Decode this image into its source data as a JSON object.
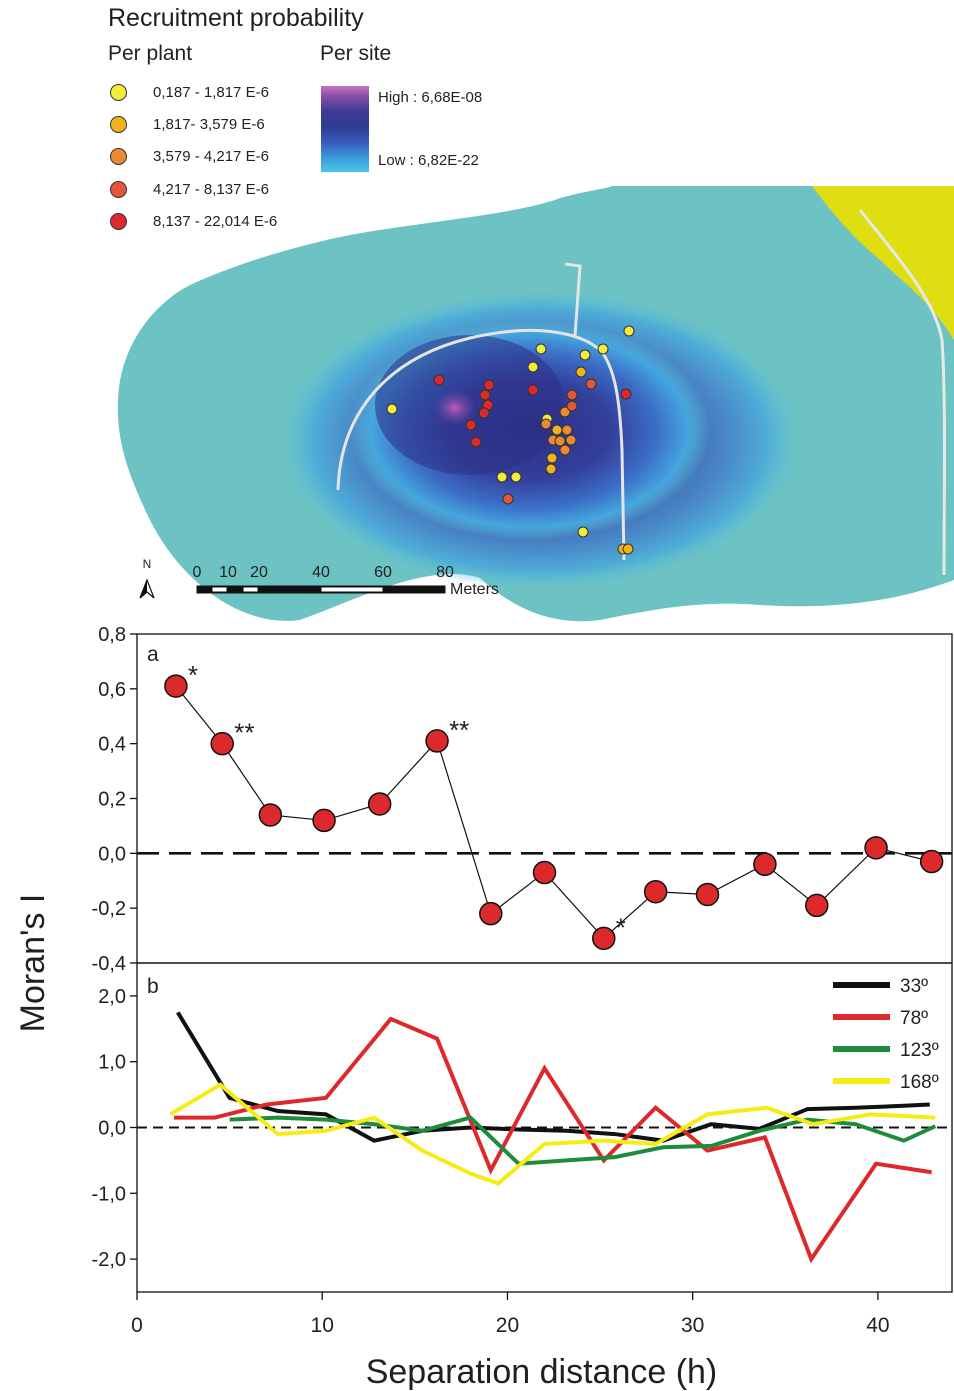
{
  "legend": {
    "title": "Recruitment probability",
    "per_plant_title": "Per plant",
    "per_site_title": "Per site",
    "per_plant_classes": [
      {
        "label": "0,187 - 1,817 E-6",
        "color": "#f4ec3c"
      },
      {
        "label": "1,817- 3,579 E-6",
        "color": "#f2b21c"
      },
      {
        "label": "3,579 - 4,217 E-6",
        "color": "#ec8a34"
      },
      {
        "label": "4,217 - 8,137 E-6",
        "color": "#e2563a"
      },
      {
        "label": "8,137 - 22,014 E-6",
        "color": "#dc2a2c"
      }
    ],
    "per_site_high": "High : 6,68E-08",
    "per_site_low": "Low : 6,82E-22"
  },
  "map": {
    "north_label": "N",
    "scale_ticks": [
      "0",
      "10",
      "20",
      "40",
      "60",
      "80"
    ],
    "scale_unit": "Meters"
  },
  "chart_data": [
    {
      "type": "line",
      "panel_label": "a",
      "ylabel": "Moran's I",
      "xlabel": "Separation distance (h)",
      "xlim": [
        0,
        44
      ],
      "ylim": [
        -0.4,
        0.8
      ],
      "xticks": [
        "0",
        "10",
        "20",
        "30",
        "40"
      ],
      "yticks": [
        "-0,4",
        "-0,2",
        "0,0",
        "0,2",
        "0,4",
        "0,6",
        "0,8"
      ],
      "reference_line": 0,
      "marker_color": "#dc2a2c",
      "points": [
        {
          "x": 2.1,
          "y": 0.61,
          "sig": "*"
        },
        {
          "x": 4.6,
          "y": 0.4,
          "sig": "**"
        },
        {
          "x": 7.2,
          "y": 0.14,
          "sig": ""
        },
        {
          "x": 10.1,
          "y": 0.12,
          "sig": ""
        },
        {
          "x": 13.1,
          "y": 0.18,
          "sig": ""
        },
        {
          "x": 16.2,
          "y": 0.41,
          "sig": "**"
        },
        {
          "x": 19.1,
          "y": -0.22,
          "sig": ""
        },
        {
          "x": 22.0,
          "y": -0.07,
          "sig": ""
        },
        {
          "x": 25.2,
          "y": -0.31,
          "sig": "*"
        },
        {
          "x": 28.0,
          "y": -0.14,
          "sig": ""
        },
        {
          "x": 30.8,
          "y": -0.15,
          "sig": ""
        },
        {
          "x": 33.9,
          "y": -0.04,
          "sig": ""
        },
        {
          "x": 36.7,
          "y": -0.19,
          "sig": ""
        },
        {
          "x": 39.9,
          "y": 0.02,
          "sig": ""
        },
        {
          "x": 42.9,
          "y": -0.03,
          "sig": ""
        }
      ]
    },
    {
      "type": "line",
      "panel_label": "b",
      "ylim": [
        -2.5,
        2.5
      ],
      "yticks": [
        "-2,0",
        "-1,0",
        "0,0",
        "1,0",
        "2,0"
      ],
      "reference_line": 0,
      "series": [
        {
          "name": "33º",
          "color": "#111111",
          "x": [
            2.2,
            5.0,
            7.6,
            10.2,
            12.8,
            15.4,
            18.0,
            20.6,
            23.2,
            25.8,
            28.4,
            31.0,
            33.6,
            36.2,
            38.8,
            41.4,
            42.8
          ],
          "y": [
            1.75,
            0.45,
            0.25,
            0.2,
            -0.2,
            -0.05,
            0.0,
            -0.03,
            -0.05,
            -0.1,
            -0.2,
            0.05,
            -0.02,
            0.28,
            0.3,
            0.33,
            0.35
          ]
        },
        {
          "name": "78º",
          "color": "#dc2a2c",
          "x": [
            2.0,
            4.2,
            7.0,
            10.2,
            13.7,
            16.2,
            19.1,
            22.0,
            25.2,
            28.0,
            30.8,
            33.9,
            36.4,
            39.9,
            42.9
          ],
          "y": [
            0.15,
            0.15,
            0.35,
            0.45,
            1.65,
            1.35,
            -0.65,
            0.9,
            -0.5,
            0.3,
            -0.35,
            -0.15,
            -2.0,
            -0.55,
            -0.68
          ]
        },
        {
          "name": "123º",
          "color": "#1f8c3c",
          "x": [
            5.0,
            7.6,
            10.2,
            12.8,
            15.4,
            18.0,
            20.6,
            23.2,
            25.8,
            28.4,
            31.0,
            33.6,
            36.2,
            38.8,
            41.4,
            43.1
          ],
          "y": [
            0.12,
            0.15,
            0.12,
            0.05,
            -0.05,
            0.15,
            -0.55,
            -0.5,
            -0.45,
            -0.3,
            -0.28,
            -0.05,
            0.12,
            0.05,
            -0.2,
            0.02
          ]
        },
        {
          "name": "168º",
          "color": "#f6ec14",
          "x": [
            1.8,
            4.5,
            7.6,
            10.2,
            12.8,
            15.4,
            18.0,
            19.5,
            22.0,
            25.2,
            28.0,
            30.8,
            34.0,
            36.5,
            39.6,
            43.1
          ],
          "y": [
            0.2,
            0.65,
            -0.1,
            -0.05,
            0.15,
            -0.35,
            -0.7,
            -0.85,
            -0.25,
            -0.2,
            -0.25,
            0.2,
            0.3,
            0.05,
            0.2,
            0.15
          ]
        }
      ]
    }
  ]
}
